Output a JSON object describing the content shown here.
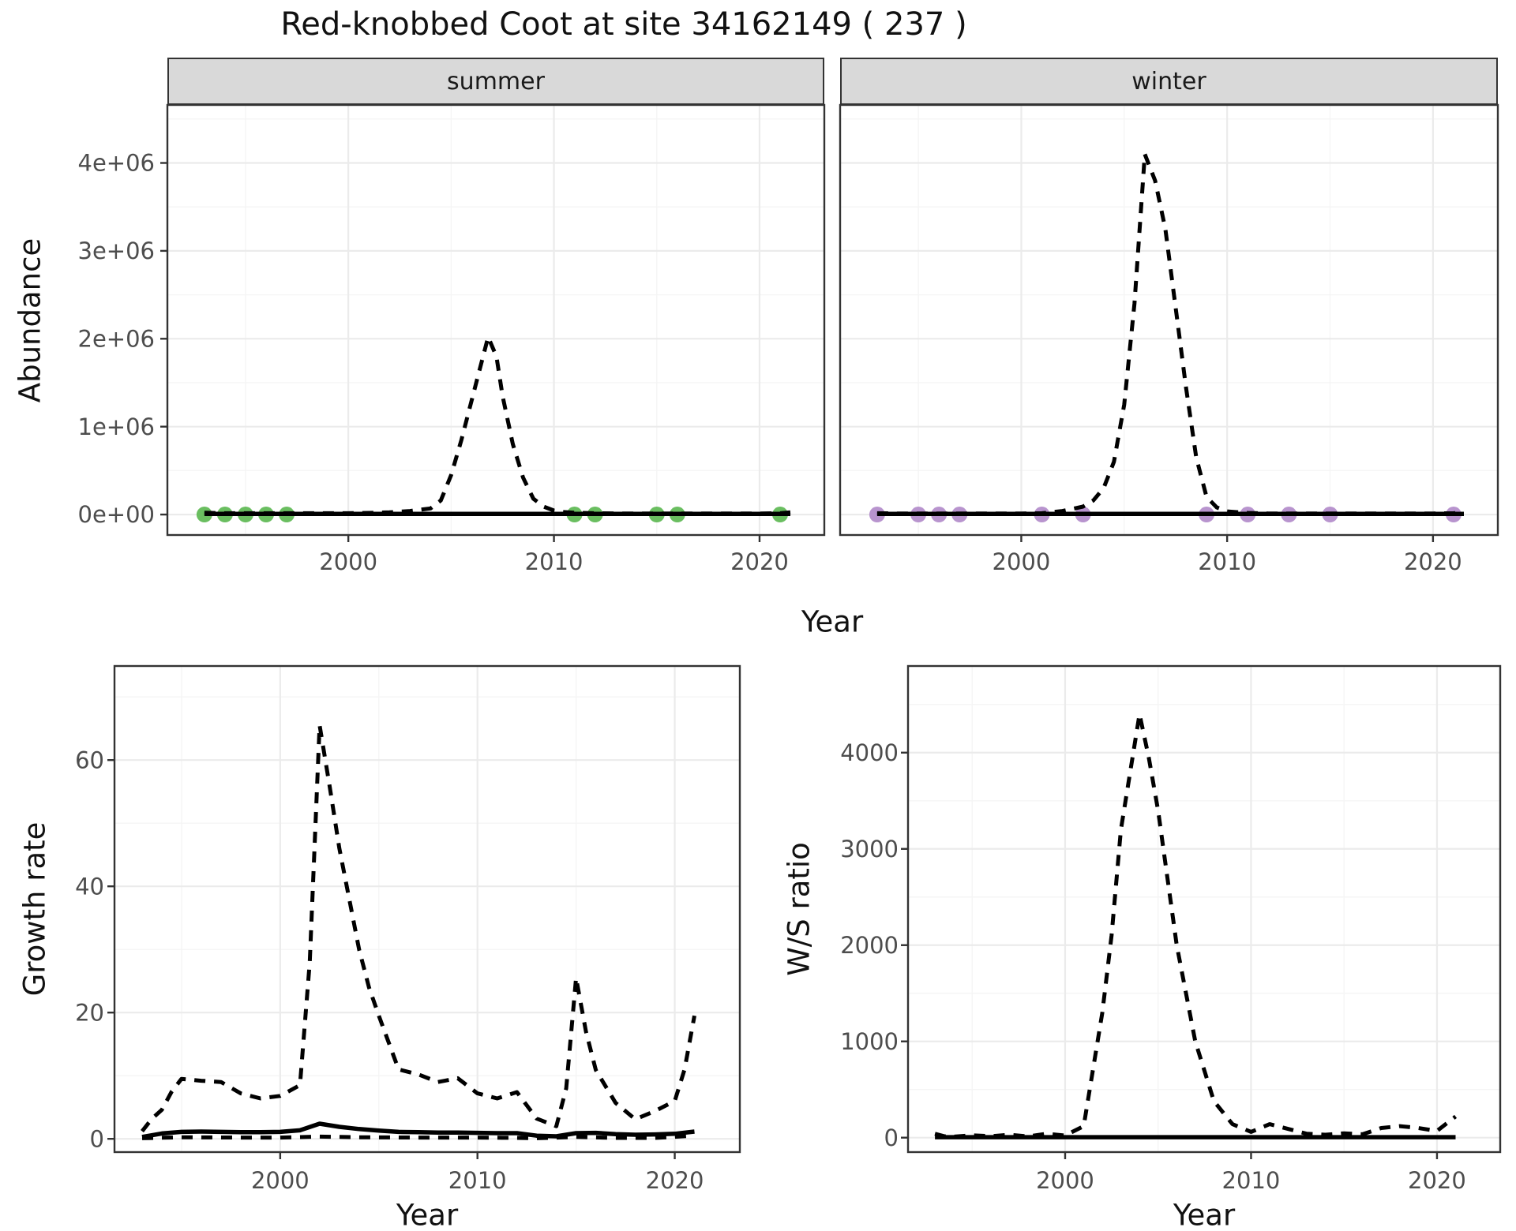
{
  "title": "Red-knobbed Coot at site 34162149 ( 237 )",
  "colors": {
    "summer_dot": "#6ABE60",
    "winter_dot": "#B894CE",
    "line": "#000000",
    "strip_bg": "#D9D9D9",
    "grid_major": "#EBEBEB",
    "grid_minor": "#F5F5F5",
    "panel_border": "#333333",
    "axis_text": "#4D4D4D"
  },
  "chart_data": [
    {
      "type": "line",
      "facet": "summer",
      "xlabel": "Year",
      "ylabel": "Abundance",
      "xlim": [
        1991.2,
        2023.15
      ],
      "ylim": [
        -233000,
        4660000
      ],
      "xticks": [
        2000,
        2010,
        2020
      ],
      "xtick_labels": [
        "2000",
        "2010",
        "2020"
      ],
      "xticks_minor": [
        1995,
        2005,
        2015
      ],
      "yticks": {
        "values": [
          0,
          1000000,
          2000000,
          3000000,
          4000000
        ],
        "labels": [
          "0e+00",
          "1e+06",
          "2e+06",
          "3e+06",
          "4e+06"
        ]
      },
      "yticks_minor": [
        500000,
        1500000,
        2500000,
        3500000,
        4500000
      ],
      "grid": true,
      "legend": "none",
      "series": [
        {
          "name": "modelled-upper",
          "style": "dashed",
          "points": [
            [
              1993,
              20000
            ],
            [
              1994,
              15000
            ],
            [
              1995,
              15000
            ],
            [
              1996,
              15000
            ],
            [
              1997,
              15000
            ],
            [
              1998,
              15000
            ],
            [
              1999,
              15000
            ],
            [
              2000,
              15000
            ],
            [
              2001,
              18000
            ],
            [
              2002,
              25000
            ],
            [
              2003,
              40000
            ],
            [
              2004,
              70000
            ],
            [
              2004.5,
              160000
            ],
            [
              2005,
              450000
            ],
            [
              2005.5,
              850000
            ],
            [
              2006,
              1300000
            ],
            [
              2006.5,
              1750000
            ],
            [
              2006.8,
              2020000
            ],
            [
              2007.2,
              1800000
            ],
            [
              2007.5,
              1350000
            ],
            [
              2008,
              800000
            ],
            [
              2008.5,
              420000
            ],
            [
              2009,
              180000
            ],
            [
              2009.5,
              90000
            ],
            [
              2010,
              45000
            ],
            [
              2010.5,
              28000
            ],
            [
              2011,
              20000
            ],
            [
              2012,
              15000
            ],
            [
              2013,
              12000
            ],
            [
              2014,
              12000
            ],
            [
              2015,
              12000
            ],
            [
              2016,
              12000
            ],
            [
              2017,
              12000
            ],
            [
              2018,
              12000
            ],
            [
              2019,
              12000
            ],
            [
              2020,
              12000
            ],
            [
              2021,
              15000
            ],
            [
              2021.5,
              25000
            ]
          ]
        },
        {
          "name": "modelled-mean",
          "style": "solid",
          "points": [
            [
              1993,
              8000
            ],
            [
              2000,
              8000
            ],
            [
              2010,
              8000
            ],
            [
              2021.5,
              8000
            ]
          ]
        }
      ],
      "dots": {
        "name": "observed-counts",
        "color": "#6ABE60",
        "value": 0,
        "years": [
          1993,
          1994,
          1995,
          1996,
          1997,
          2011,
          2012,
          2015,
          2016,
          2021
        ]
      }
    },
    {
      "type": "line",
      "facet": "winter",
      "xlim": [
        1991.2,
        2023.15
      ],
      "ylim": [
        -233000,
        4660000
      ],
      "xticks": [
        2000,
        2010,
        2020
      ],
      "xtick_labels": [
        "2000",
        "2010",
        "2020"
      ],
      "xticks_minor": [
        1995,
        2005,
        2015
      ],
      "yticks": {
        "values": [
          0,
          1000000,
          2000000,
          3000000,
          4000000
        ],
        "labels": [
          "0e+00",
          "1e+06",
          "2e+06",
          "3e+06",
          "4e+06"
        ]
      },
      "yticks_minor": [
        500000,
        1500000,
        2500000,
        3500000,
        4500000
      ],
      "grid": true,
      "legend": "none",
      "series": [
        {
          "name": "modelled-upper",
          "style": "dashed",
          "points": [
            [
              1993,
              15000
            ],
            [
              1994,
              12000
            ],
            [
              1995,
              12000
            ],
            [
              1996,
              12000
            ],
            [
              1997,
              12000
            ],
            [
              1998,
              12000
            ],
            [
              1999,
              12000
            ],
            [
              2000,
              12000
            ],
            [
              2001,
              15000
            ],
            [
              2002,
              40000
            ],
            [
              2003,
              90000
            ],
            [
              2003.5,
              160000
            ],
            [
              2004,
              300000
            ],
            [
              2004.5,
              600000
            ],
            [
              2005,
              1250000
            ],
            [
              2005.5,
              2400000
            ],
            [
              2006,
              4100000
            ],
            [
              2006.5,
              3800000
            ],
            [
              2007,
              3250000
            ],
            [
              2007.5,
              2350000
            ],
            [
              2008,
              1450000
            ],
            [
              2008.5,
              650000
            ],
            [
              2009,
              200000
            ],
            [
              2009.5,
              80000
            ],
            [
              2010,
              35000
            ],
            [
              2011,
              18000
            ],
            [
              2012,
              12000
            ],
            [
              2013,
              12000
            ],
            [
              2014,
              12000
            ],
            [
              2015,
              12000
            ],
            [
              2016,
              12000
            ],
            [
              2017,
              12000
            ],
            [
              2018,
              12000
            ],
            [
              2019,
              12000
            ],
            [
              2020,
              12000
            ],
            [
              2021,
              15000
            ],
            [
              2021.5,
              20000
            ]
          ]
        },
        {
          "name": "modelled-mean",
          "style": "solid",
          "points": [
            [
              1993,
              8000
            ],
            [
              2000,
              8000
            ],
            [
              2010,
              8000
            ],
            [
              2021.5,
              8000
            ]
          ]
        }
      ],
      "dots": {
        "name": "observed-counts",
        "color": "#B894CE",
        "value": 0,
        "years": [
          1993,
          1995,
          1996,
          1997,
          2001,
          2003,
          2009,
          2011,
          2013,
          2015,
          2021
        ]
      }
    },
    {
      "type": "line",
      "xlabel": "Year",
      "ylabel": "Growth rate",
      "xlim": [
        1991.6,
        2023.3
      ],
      "ylim": [
        -2.1,
        74.9
      ],
      "xticks": [
        2000,
        2010,
        2020
      ],
      "xtick_labels": [
        "2000",
        "2010",
        "2020"
      ],
      "xticks_minor": [
        1995,
        2005,
        2015
      ],
      "yticks": {
        "values": [
          0,
          20,
          40,
          60
        ],
        "labels": [
          "0",
          "20",
          "40",
          "60"
        ]
      },
      "yticks_minor": [
        10,
        30,
        50,
        70
      ],
      "grid": true,
      "legend": "none",
      "series": [
        {
          "name": "upper-ci",
          "style": "dashed",
          "points": [
            [
              1993,
              1.2
            ],
            [
              1993.5,
              3.2
            ],
            [
              1994,
              4.6
            ],
            [
              1994.5,
              7.5
            ],
            [
              1995,
              9.5
            ],
            [
              1996,
              9.2
            ],
            [
              1997,
              9.0
            ],
            [
              1998,
              7.2
            ],
            [
              1999,
              6.4
            ],
            [
              2000,
              6.8
            ],
            [
              2001,
              8.5
            ],
            [
              2001.5,
              28
            ],
            [
              2002,
              65.5
            ],
            [
              2002.5,
              56
            ],
            [
              2003,
              46
            ],
            [
              2004,
              30
            ],
            [
              2004.5,
              24
            ],
            [
              2005,
              19.5
            ],
            [
              2006,
              11
            ],
            [
              2007,
              10.2
            ],
            [
              2008,
              9
            ],
            [
              2009,
              9.6
            ],
            [
              2010,
              7.2
            ],
            [
              2011,
              6.4
            ],
            [
              2012,
              7.4
            ],
            [
              2013,
              3.2
            ],
            [
              2014,
              2.0
            ],
            [
              2014.5,
              8
            ],
            [
              2015,
              25.5
            ],
            [
              2015.5,
              17
            ],
            [
              2016,
              10.9
            ],
            [
              2017,
              5.7
            ],
            [
              2018,
              3.1
            ],
            [
              2019,
              4.4
            ],
            [
              2020,
              6.0
            ],
            [
              2020.5,
              11
            ],
            [
              2021,
              19.5
            ]
          ]
        },
        {
          "name": "lower-ci",
          "style": "dashed",
          "points": [
            [
              1993,
              0.1
            ],
            [
              1995,
              0.25
            ],
            [
              1998,
              0.2
            ],
            [
              2000,
              0.2
            ],
            [
              2002,
              0.35
            ],
            [
              2004,
              0.25
            ],
            [
              2007,
              0.2
            ],
            [
              2010,
              0.2
            ],
            [
              2012,
              0.15
            ],
            [
              2013,
              0.1
            ],
            [
              2015,
              0.3
            ],
            [
              2017,
              0.15
            ],
            [
              2019,
              0.15
            ],
            [
              2021,
              0.5
            ]
          ]
        },
        {
          "name": "mean",
          "style": "solid",
          "points": [
            [
              1993,
              0.3
            ],
            [
              1994,
              0.85
            ],
            [
              1995,
              1.1
            ],
            [
              1996,
              1.15
            ],
            [
              1997,
              1.1
            ],
            [
              1998,
              1.05
            ],
            [
              1999,
              1.05
            ],
            [
              2000,
              1.1
            ],
            [
              2001,
              1.35
            ],
            [
              2002,
              2.4
            ],
            [
              2003,
              1.9
            ],
            [
              2004,
              1.55
            ],
            [
              2005,
              1.3
            ],
            [
              2006,
              1.1
            ],
            [
              2007,
              1.05
            ],
            [
              2008,
              1.0
            ],
            [
              2009,
              1.0
            ],
            [
              2010,
              0.95
            ],
            [
              2011,
              0.9
            ],
            [
              2012,
              0.9
            ],
            [
              2013,
              0.5
            ],
            [
              2014,
              0.4
            ],
            [
              2015,
              0.9
            ],
            [
              2016,
              0.95
            ],
            [
              2017,
              0.75
            ],
            [
              2018,
              0.65
            ],
            [
              2019,
              0.7
            ],
            [
              2020,
              0.8
            ],
            [
              2021,
              1.15
            ]
          ]
        }
      ]
    },
    {
      "type": "line",
      "xlabel": "Year",
      "ylabel": "W/S ratio",
      "xlim": [
        1991.55,
        2023.4
      ],
      "ylim": [
        -150,
        4900
      ],
      "xticks": [
        2000,
        2010,
        2020
      ],
      "xtick_labels": [
        "2000",
        "2010",
        "2020"
      ],
      "xticks_minor": [
        1995,
        2005,
        2015
      ],
      "yticks": {
        "values": [
          0,
          1000,
          2000,
          3000,
          4000
        ],
        "labels": [
          "0",
          "1000",
          "2000",
          "3000",
          "4000"
        ]
      },
      "yticks_minor": [
        500,
        1500,
        2500,
        3500,
        4500
      ],
      "grid": true,
      "legend": "none",
      "series": [
        {
          "name": "ws-ratio-upper",
          "style": "dashed",
          "points": [
            [
              1993,
              40
            ],
            [
              1993.5,
              15
            ],
            [
              1994,
              10
            ],
            [
              1995,
              25
            ],
            [
              1996,
              15
            ],
            [
              1997,
              30
            ],
            [
              1998,
              12
            ],
            [
              1999,
              40
            ],
            [
              2000,
              22
            ],
            [
              2001,
              120
            ],
            [
              2002,
              1300
            ],
            [
              2002.5,
              2100
            ],
            [
              2003,
              3200
            ],
            [
              2004,
              4400
            ],
            [
              2004.5,
              3950
            ],
            [
              2005,
              3400
            ],
            [
              2006,
              2000
            ],
            [
              2007,
              1000
            ],
            [
              2008,
              380
            ],
            [
              2009,
              140
            ],
            [
              2010,
              60
            ],
            [
              2011,
              140
            ],
            [
              2012,
              90
            ],
            [
              2013,
              40
            ],
            [
              2014,
              30
            ],
            [
              2015,
              45
            ],
            [
              2016,
              35
            ],
            [
              2017,
              100
            ],
            [
              2018,
              120
            ],
            [
              2019,
              100
            ],
            [
              2020,
              70
            ],
            [
              2021,
              220
            ]
          ]
        },
        {
          "name": "ws-ratio-mean",
          "style": "solid",
          "points": [
            [
              1993,
              5
            ],
            [
              2000,
              5
            ],
            [
              2010,
              5
            ],
            [
              2021,
              5
            ]
          ]
        }
      ]
    }
  ]
}
